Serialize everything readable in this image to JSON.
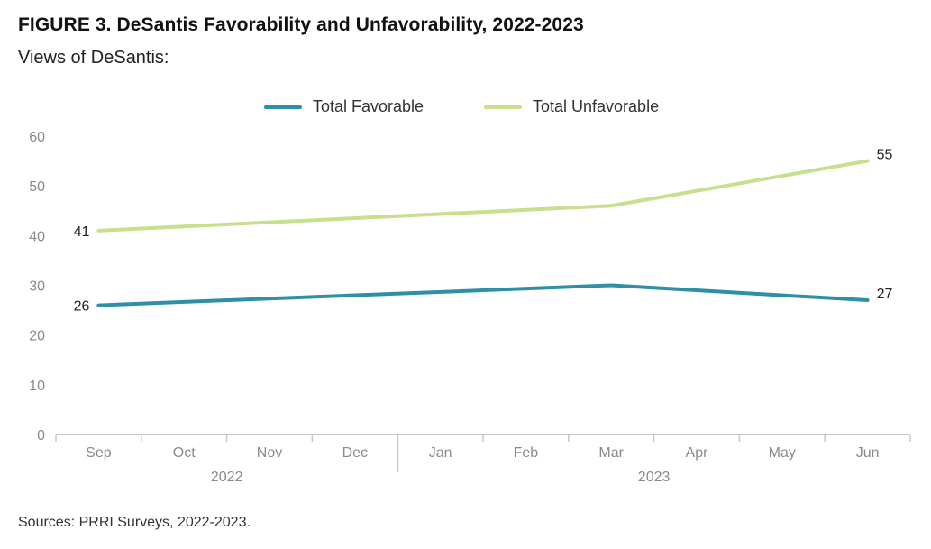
{
  "figure": {
    "title": "FIGURE 3. DeSantis Favorability and Unfavorability, 2022-2023",
    "subtitle": "Views of DeSantis:",
    "source": "Sources: PRRI Surveys, 2022-2023."
  },
  "colors": {
    "favorable": "#2e8fa6",
    "unfavorable": "#c8df8e",
    "axis": "#c8c8c8",
    "tick_text": "#8a8a8a"
  },
  "chart_data": {
    "type": "line",
    "title": "FIGURE 3. DeSantis Favorability and Unfavorability, 2022-2023",
    "subtitle": "Views of DeSantis:",
    "categories": [
      "Sep",
      "Oct",
      "Nov",
      "Dec",
      "Jan",
      "Feb",
      "Mar",
      "Apr",
      "May",
      "Jun"
    ],
    "year_groups": [
      {
        "label": "2022",
        "months": [
          "Sep",
          "Oct",
          "Nov",
          "Dec"
        ]
      },
      {
        "label": "2023",
        "months": [
          "Jan",
          "Feb",
          "Mar",
          "Apr",
          "May",
          "Jun"
        ]
      }
    ],
    "yticks": [
      0,
      10,
      20,
      30,
      40,
      50,
      60
    ],
    "ylim": [
      0,
      60
    ],
    "grid": false,
    "legend_position": "top-center",
    "series": [
      {
        "name": "Total Favorable",
        "color_key": "favorable",
        "points": [
          {
            "x": "Sep",
            "y": 26
          },
          {
            "x": "Mar",
            "y": 30
          },
          {
            "x": "Jun",
            "y": 27
          }
        ],
        "labels": [
          {
            "x": "Sep",
            "text": "26"
          },
          {
            "x": "Jun",
            "text": "27"
          }
        ]
      },
      {
        "name": "Total Unfavorable",
        "color_key": "unfavorable",
        "points": [
          {
            "x": "Sep",
            "y": 41
          },
          {
            "x": "Mar",
            "y": 46
          },
          {
            "x": "Jun",
            "y": 55
          }
        ],
        "labels": [
          {
            "x": "Sep",
            "text": "41"
          },
          {
            "x": "Jun",
            "text": "55"
          }
        ]
      }
    ]
  }
}
